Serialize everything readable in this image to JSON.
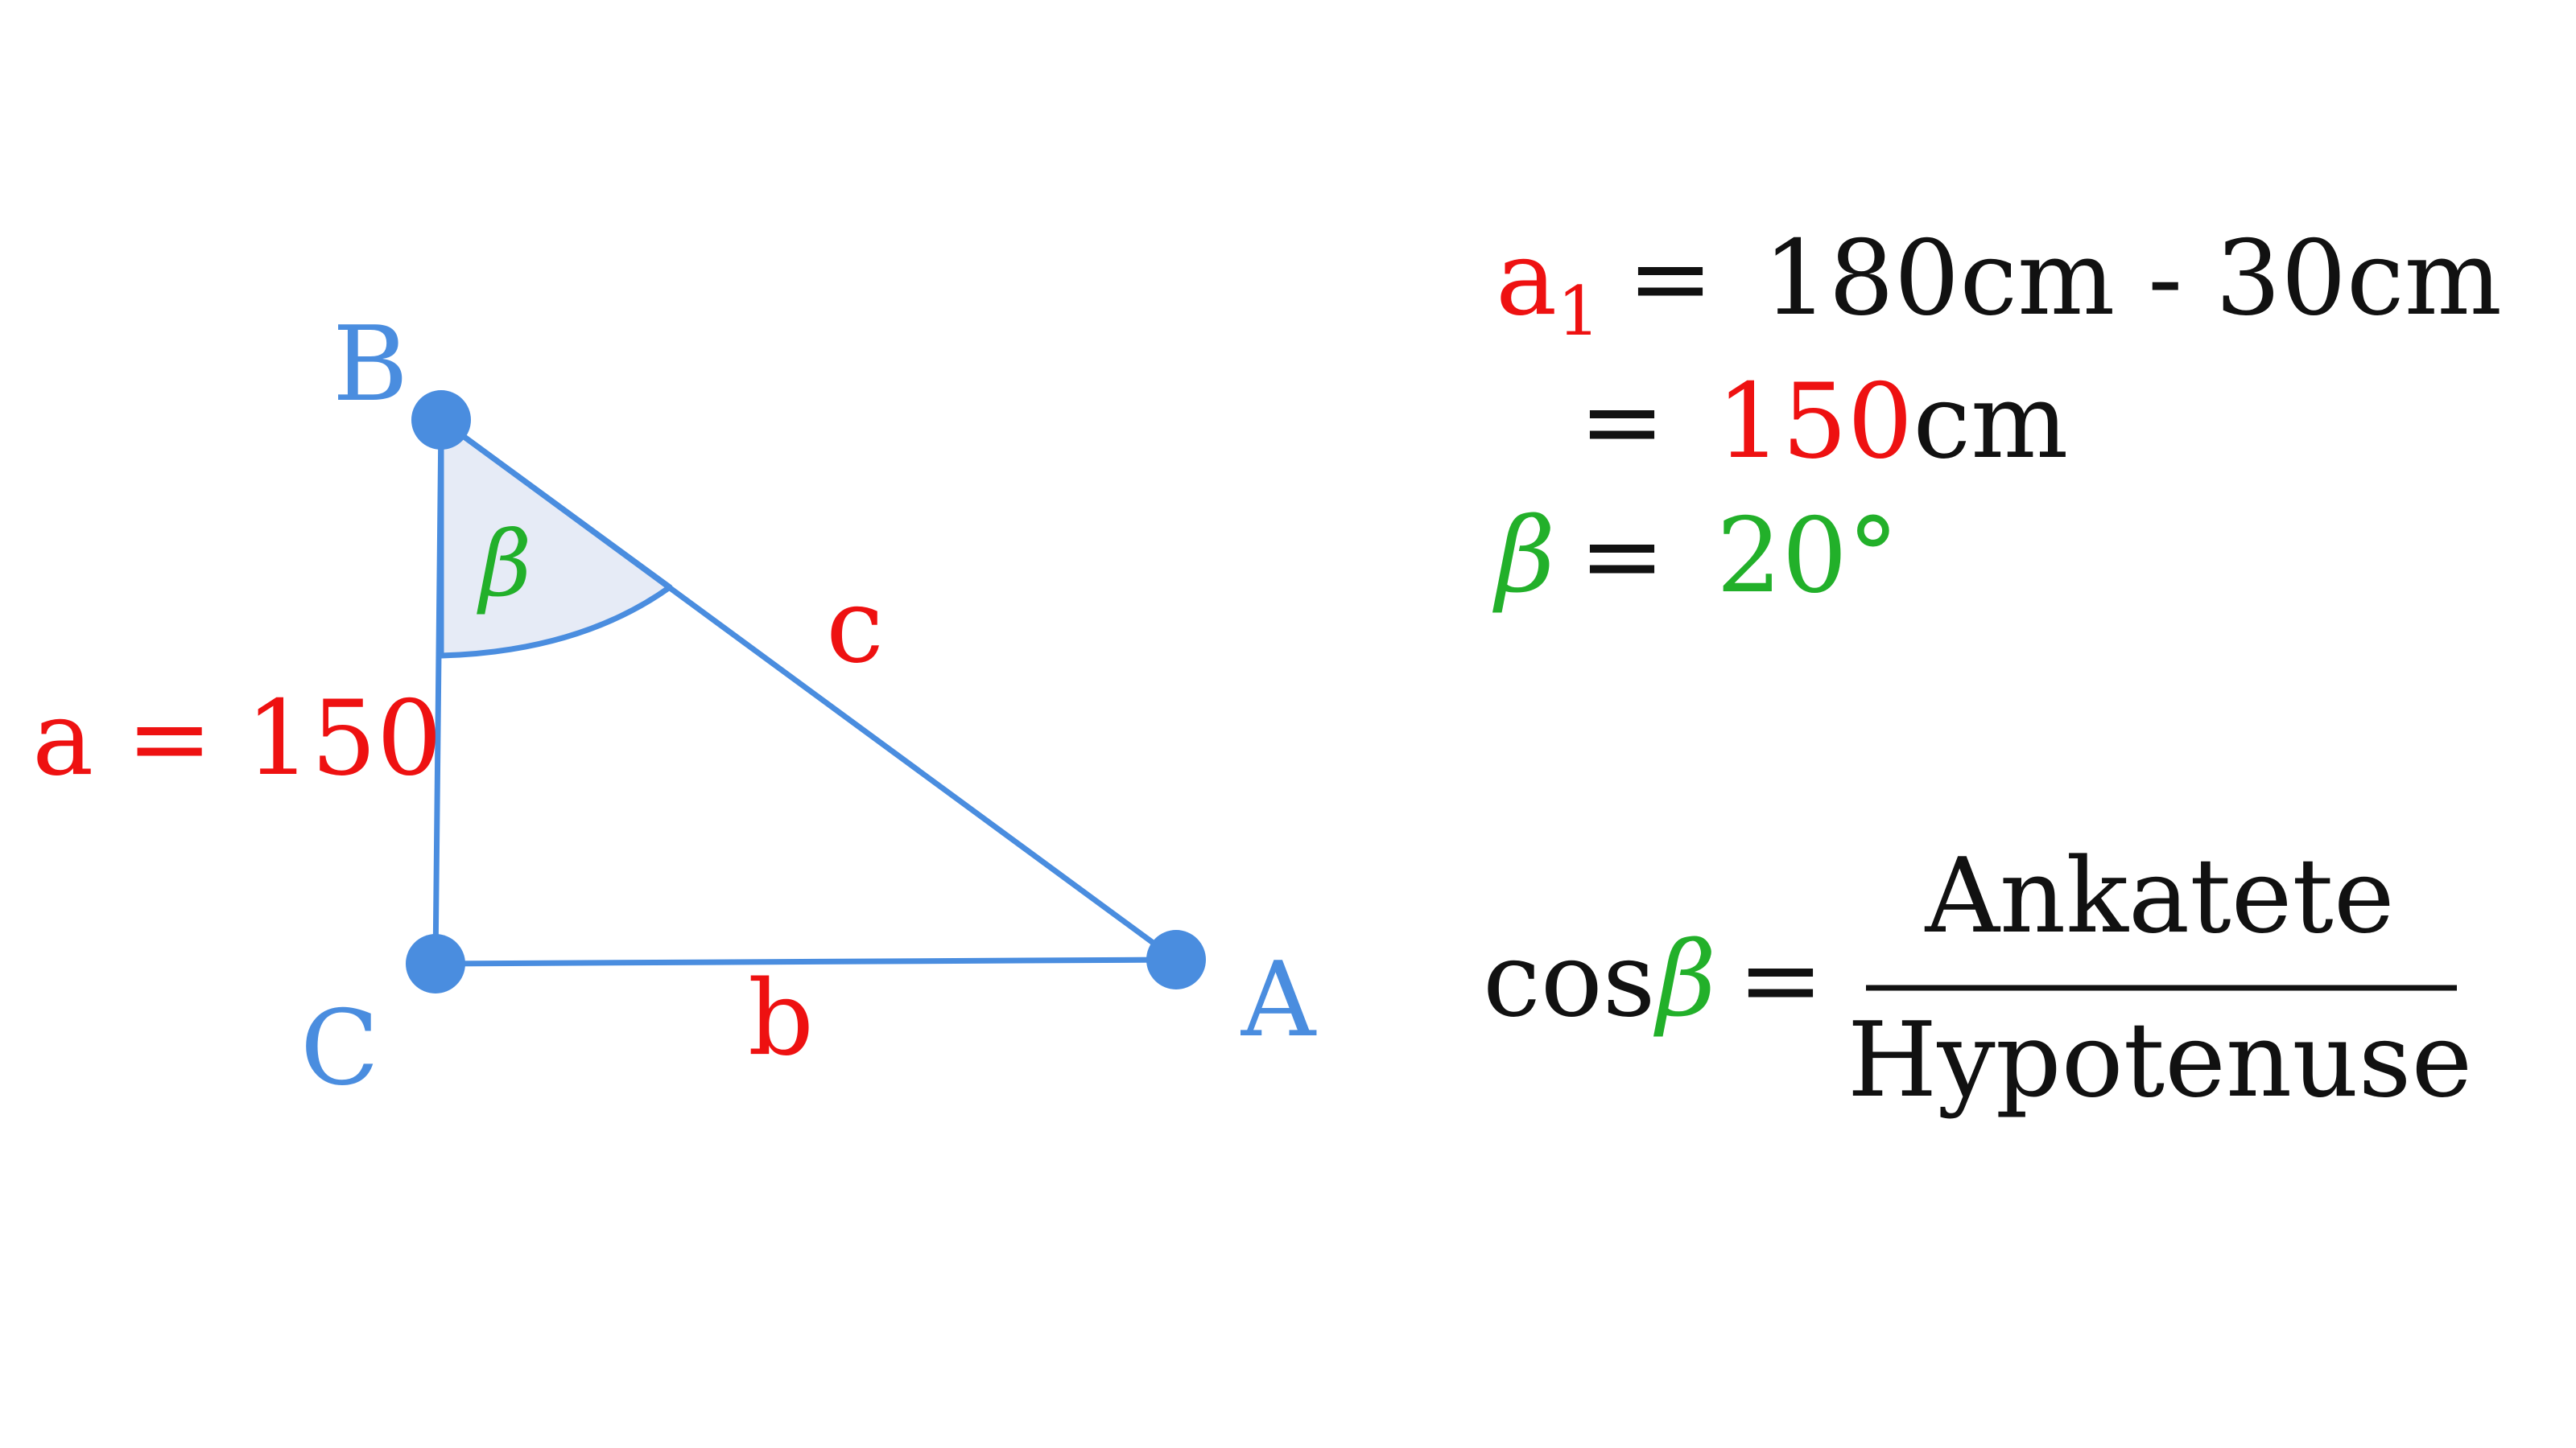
{
  "colors": {
    "triangle": "#4a8ddf",
    "angle_fill": "#e6ebf6",
    "red": "#ee1111",
    "green": "#22b02a",
    "black": "#111111"
  },
  "triangle": {
    "vertex_labels": {
      "a_vertex": "A",
      "b_vertex": "B",
      "c_vertex": "C"
    },
    "side_labels": {
      "a_side": "a = 150",
      "b_side": "b",
      "c_side": "c"
    },
    "angle_label": "β"
  },
  "equations": {
    "line1": {
      "var": "a",
      "sub": "1",
      "eq": "=",
      "rhs": "180cm - 30cm"
    },
    "line2": {
      "eq": "=",
      "value": "150",
      "unit": "cm"
    },
    "line3": {
      "var": "β",
      "eq": "=",
      "value": "20°"
    }
  },
  "formula": {
    "func": "cos",
    "var": "β",
    "eq": "=",
    "numerator": "Ankatete",
    "denominator": "Hypotenuse"
  }
}
